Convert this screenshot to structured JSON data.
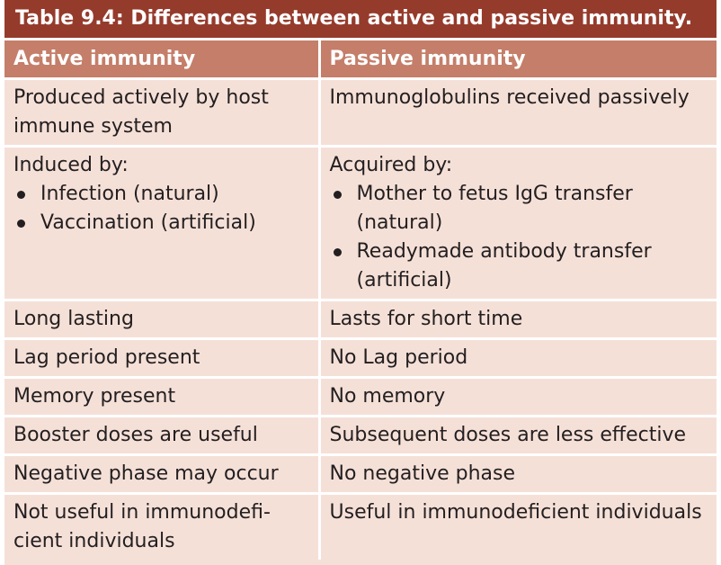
{
  "caption": {
    "label": "Table 9.4:",
    "text": " Differences between active and passive immunity."
  },
  "headers": [
    "Active immunity",
    "Passive immunity"
  ],
  "rows": [
    {
      "active": "Produced actively by host immune system",
      "passive": "Immunoglobulins received passively"
    },
    {
      "active_lead": "Induced by:",
      "active_items": [
        "Infection (natural)",
        "Vaccination (artificial)"
      ],
      "passive_lead": "Acquired by:",
      "passive_items": [
        "Mother to fetus IgG transfer (natural)",
        "Readymade antibody transfer (artificial)"
      ]
    },
    {
      "active": "Long lasting",
      "passive": "Lasts for short time"
    },
    {
      "active": "Lag period present",
      "passive": "No Lag period"
    },
    {
      "active": "Memory present",
      "passive": "No memory"
    },
    {
      "active": "Booster doses are useful",
      "passive": "Subsequent doses are less effective"
    },
    {
      "active": "Negative phase may occur",
      "passive": "No negative phase"
    },
    {
      "active": "Not useful in immunodefi­cient individuals",
      "passive": "Useful in immunodeficient individuals"
    }
  ],
  "colors": {
    "caption_bg": "#953b2c",
    "header_bg": "#c47e69",
    "cell_bg": "#f5e0d8"
  }
}
